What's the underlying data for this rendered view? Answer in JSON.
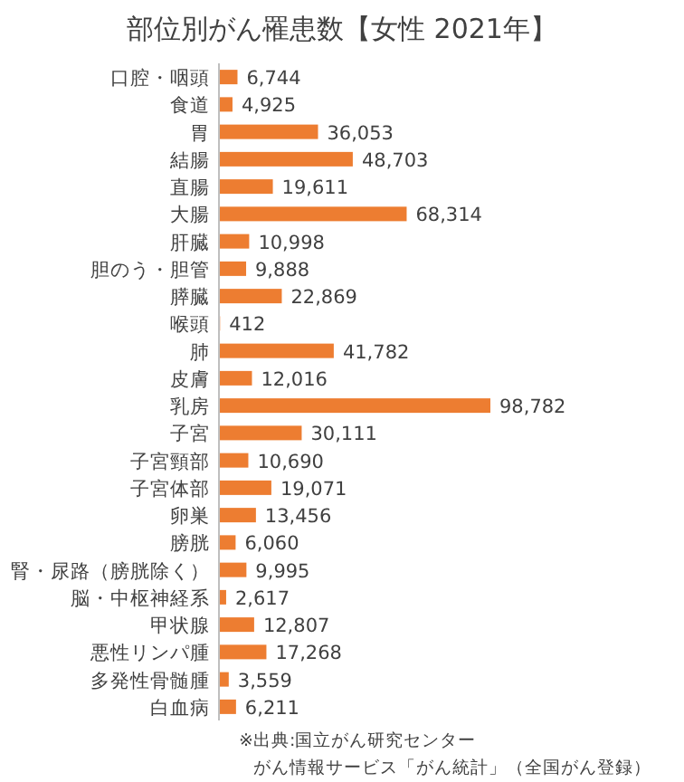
{
  "chart_data": {
    "type": "bar",
    "orientation": "horizontal",
    "title": "部位別がん罹患数【女性 2021年】",
    "categories": [
      "口腔・咽頭",
      "食道",
      "胃",
      "結腸",
      "直腸",
      "大腸",
      "肝臓",
      "胆のう・胆管",
      "膵臓",
      "喉頭",
      "肺",
      "皮膚",
      "乳房",
      "子宮",
      "子宮頸部",
      "子宮体部",
      "卵巣",
      "膀胱",
      "腎・尿路（膀胱除く）",
      "脳・中枢神経系",
      "甲状腺",
      "悪性リンパ腫",
      "多発性骨髄腫",
      "白血病"
    ],
    "values": [
      6744,
      4925,
      36053,
      48703,
      19611,
      68314,
      10998,
      9888,
      22869,
      412,
      41782,
      12016,
      98782,
      30111,
      10690,
      19071,
      13456,
      6060,
      9995,
      2617,
      12807,
      17268,
      3559,
      6211
    ],
    "value_labels": [
      "6,744",
      "4,925",
      "36,053",
      "48,703",
      "19,611",
      "68,314",
      "10,998",
      "9,888",
      "22,869",
      "412",
      "41,782",
      "12,016",
      "98,782",
      "30,111",
      "10,690",
      "19,071",
      "13,456",
      "6,060",
      "9,995",
      "2,617",
      "12,807",
      "17,268",
      "3,559",
      "6,211"
    ],
    "color": "#ed7d31",
    "annotations": [
      "※出典:国立がん研究センター",
      "がん情報サービス「がん統計」（全国がん登録）"
    ]
  }
}
